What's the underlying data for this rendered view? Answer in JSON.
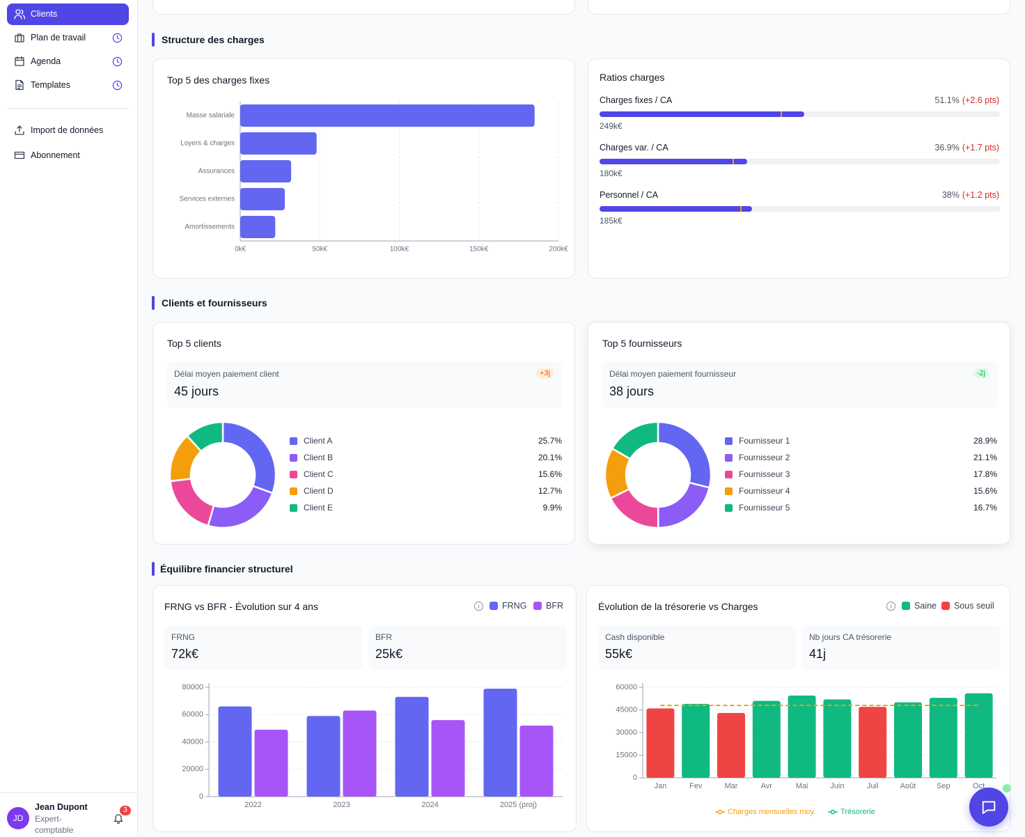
{
  "sidebar": {
    "nav": [
      "Clients",
      "Plan de travail",
      "Agenda",
      "Templates"
    ],
    "secondary": [
      "Import de données",
      "Abonnement"
    ]
  },
  "user": {
    "initials": "JD",
    "name": "Jean Dupont",
    "role": "Expert-comptable",
    "notifications": 3
  },
  "sections": [
    "Structure des charges",
    "Clients et fournisseurs",
    "Équilibre financier structurel"
  ],
  "fixed_charges": {
    "type": "hbar",
    "title": "Top 5 des charges fixes",
    "categories": [
      "Masse salariale",
      "Loyers & charges",
      "Assurances",
      "Services externes",
      "Amortissements"
    ],
    "values": [
      185000,
      48000,
      32000,
      28000,
      22000
    ],
    "color": "#6366f1",
    "xlim": [
      0,
      200000
    ],
    "xticks": [
      {
        "value": 0,
        "label": "0k€"
      },
      {
        "value": 50000,
        "label": "50k€"
      },
      {
        "value": 100000,
        "label": "100k€"
      },
      {
        "value": 150000,
        "label": "150k€"
      },
      {
        "value": 200000,
        "label": "200k€"
      }
    ],
    "grid": true
  },
  "ratios": {
    "title": "Ratios charges",
    "color": "#4f46e5",
    "marker_color": "#f59e0b",
    "items": [
      {
        "label": "Charges fixes / CA",
        "value": 51.1,
        "value_label": "51.1%",
        "delta": "(+2.6 pts)",
        "amount": "249k€",
        "marker": 45.2
      },
      {
        "label": "Charges var. / CA",
        "value": 36.9,
        "value_label": "36.9%",
        "delta": "(+1.7 pts)",
        "amount": "180k€",
        "marker": 33.2
      },
      {
        "label": "Personnel / CA",
        "value": 38,
        "value_label": "38%",
        "delta": "(+1.2 pts)",
        "amount": "185k€",
        "marker": 35.1
      }
    ]
  },
  "clients": {
    "type": "pie",
    "title": "Top 5 clients",
    "kpi": {
      "label": "Délai moyen paiement client",
      "value": "45 jours",
      "badge": "+3j"
    },
    "categories": [
      "Client A",
      "Client B",
      "Client C",
      "Client D",
      "Client E"
    ],
    "values": [
      25.7,
      20.1,
      15.6,
      12.7,
      9.9
    ],
    "value_labels": [
      "25.7%",
      "20.1%",
      "15.6%",
      "12.7%",
      "9.9%"
    ],
    "colors": [
      "#6366f1",
      "#8b5cf6",
      "#ec4899",
      "#f59e0b",
      "#10b981"
    ]
  },
  "suppliers": {
    "type": "pie",
    "title": "Top 5 fournisseurs",
    "kpi": {
      "label": "Délai moyen paiement fournisseur",
      "value": "38 jours",
      "badge": "-2j"
    },
    "categories": [
      "Fournisseur 1",
      "Fournisseur 2",
      "Fournisseur 3",
      "Fournisseur 4",
      "Fournisseur 5"
    ],
    "values": [
      28.9,
      21.1,
      17.8,
      15.6,
      16.7
    ],
    "value_labels": [
      "28.9%",
      "21.1%",
      "17.8%",
      "15.6%",
      "16.7%"
    ],
    "colors": [
      "#6366f1",
      "#8b5cf6",
      "#ec4899",
      "#f59e0b",
      "#10b981"
    ]
  },
  "frng_bfr": {
    "type": "bar",
    "title": "FRNG vs BFR - Évolution sur 4 ans",
    "kpis": [
      {
        "label": "FRNG",
        "value": "72k€"
      },
      {
        "label": "BFR",
        "value": "25k€"
      }
    ],
    "categories": [
      "2022",
      "2023",
      "2024",
      "2025 (proj)"
    ],
    "series": [
      {
        "name": "FRNG",
        "color": "#6366f1",
        "values": [
          66000,
          59000,
          73000,
          79000
        ]
      },
      {
        "name": "BFR",
        "color": "#a855f7",
        "values": [
          49000,
          63000,
          56000,
          52000
        ]
      }
    ],
    "ylim": [
      0,
      80000
    ],
    "yticks": [
      0,
      20000,
      40000,
      60000,
      80000
    ],
    "grid": true
  },
  "treasury": {
    "type": "bar",
    "title": "Évolution de la trésorerie vs Charges",
    "kpis": [
      {
        "label": "Cash disponible",
        "value": "55k€"
      },
      {
        "label": "Nb jours CA trésorerie",
        "value": "41j"
      }
    ],
    "status_legend": [
      {
        "name": "Saine",
        "color": "#10b981"
      },
      {
        "name": "Sous seuil",
        "color": "#ef4444"
      }
    ],
    "categories": [
      "Jan",
      "Fev",
      "Mar",
      "Avr",
      "Mai",
      "Juin",
      "Juil",
      "Août",
      "Sep",
      "Oct"
    ],
    "reference_line": {
      "name": "Charges mensuelles moy.",
      "color": "#f59e0b",
      "value": 48000
    },
    "series": [
      {
        "name": "Trésorerie",
        "color": "#10b981",
        "values": [
          46000,
          49000,
          43000,
          51000,
          54500,
          52000,
          47000,
          50000,
          53000,
          56000
        ],
        "colors": [
          "#ef4444",
          "#10b981",
          "#ef4444",
          "#10b981",
          "#10b981",
          "#10b981",
          "#ef4444",
          "#10b981",
          "#10b981",
          "#10b981"
        ]
      }
    ],
    "ylim": [
      0,
      60000
    ],
    "yticks": [
      0,
      15000,
      30000,
      45000,
      60000
    ],
    "grid": true
  }
}
